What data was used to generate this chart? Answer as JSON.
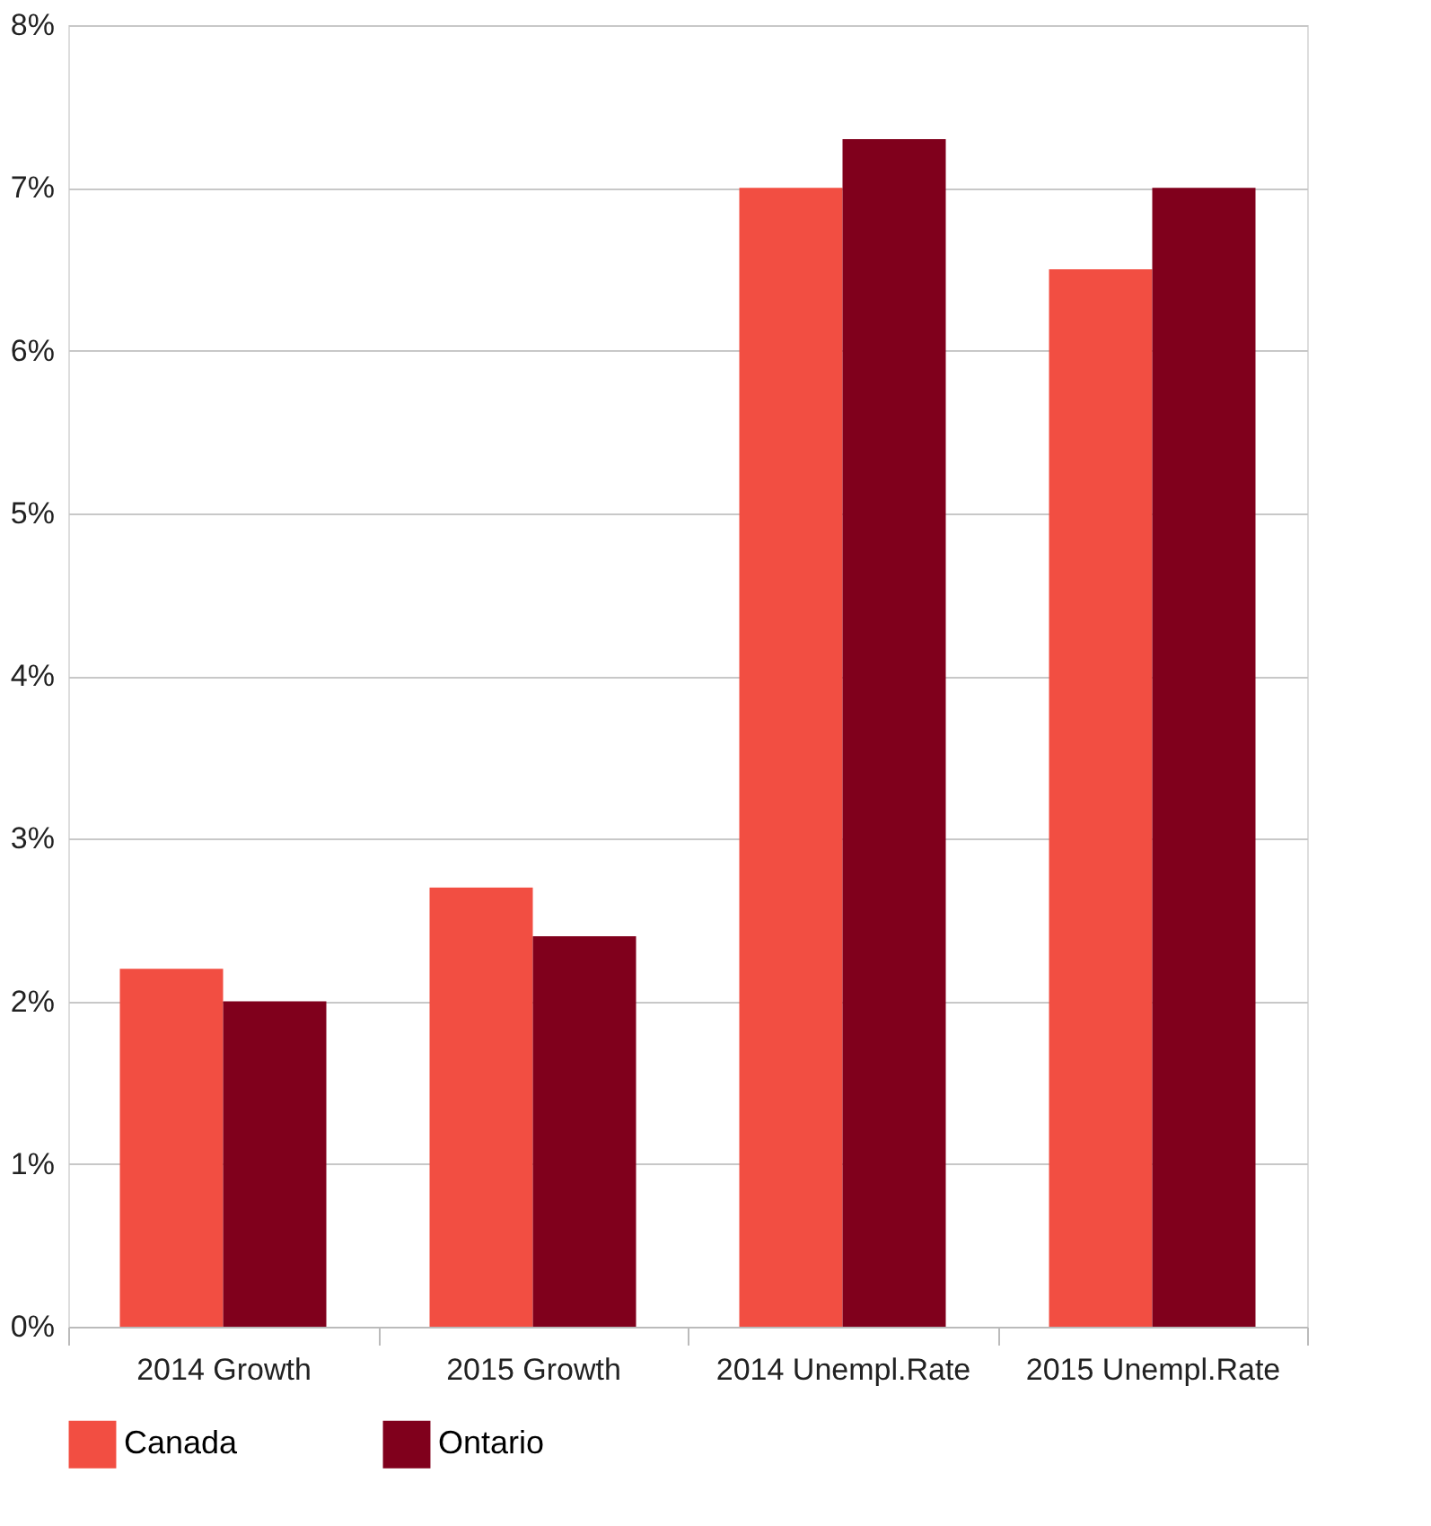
{
  "chart_data": {
    "type": "bar",
    "categories": [
      "2014 Growth",
      "2015 Growth",
      "2014 Unempl.Rate",
      "2015 Unempl.Rate"
    ],
    "series": [
      {
        "name": "Canada",
        "color": "#f24e42",
        "values": [
          2.2,
          2.7,
          7.0,
          6.5
        ]
      },
      {
        "name": "Ontario",
        "color": "#80001c",
        "values": [
          2.0,
          2.4,
          7.3,
          7.0
        ]
      }
    ],
    "ylim": [
      0,
      8
    ],
    "yticks": [
      {
        "value": 0,
        "label": "0%"
      },
      {
        "value": 1,
        "label": "1%"
      },
      {
        "value": 2,
        "label": "2%"
      },
      {
        "value": 3,
        "label": "3%"
      },
      {
        "value": 4,
        "label": "4%"
      },
      {
        "value": 5,
        "label": "5%"
      },
      {
        "value": 6,
        "label": "6%"
      },
      {
        "value": 7,
        "label": "7%"
      },
      {
        "value": 8,
        "label": "8%"
      }
    ],
    "grid": "y",
    "legend": "bottom"
  }
}
